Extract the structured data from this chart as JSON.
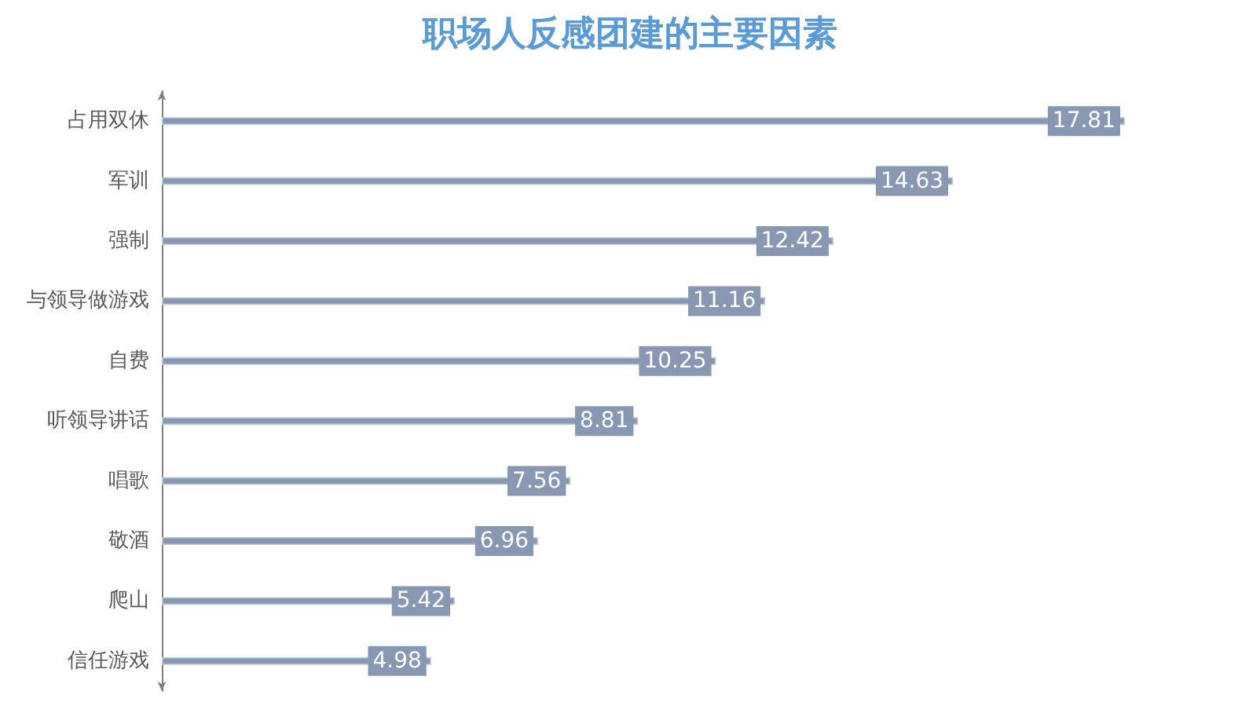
{
  "chart_data": {
    "type": "bar",
    "orientation": "horizontal",
    "title": "职场人反感团建的主要因素",
    "categories": [
      "占用双休",
      "军训",
      "强制",
      "与领导做游戏",
      "自费",
      "听领导讲话",
      "唱歌",
      "敬酒",
      "爬山",
      "信任游戏"
    ],
    "values": [
      17.81,
      14.63,
      12.42,
      11.16,
      10.25,
      8.81,
      7.56,
      6.96,
      5.42,
      4.98
    ],
    "color": "#8898b2",
    "data_labels": true,
    "tick_labels": "y",
    "grid": false
  }
}
